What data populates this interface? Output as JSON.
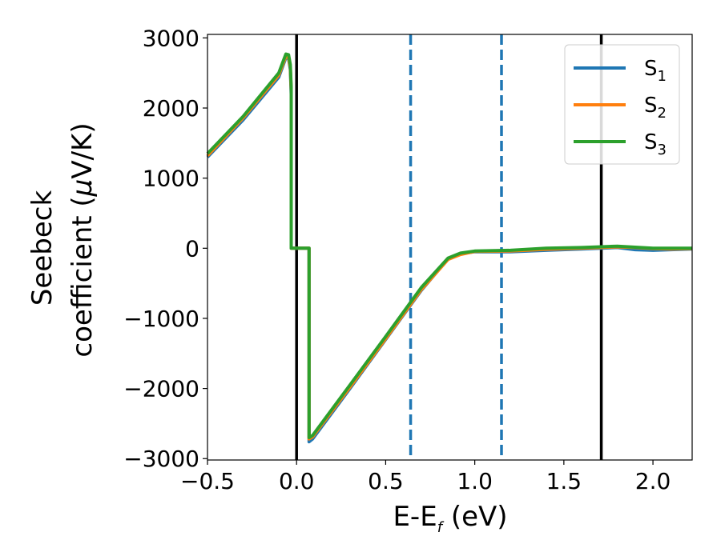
{
  "chart_data": {
    "type": "line",
    "title": "",
    "xlabel": {
      "base": "E-E",
      "sub": "f",
      "rest": " (eV)"
    },
    "ylabel": {
      "line1": "Seebeck",
      "line2_base": "coefficient  (",
      "line2_mu": "μ",
      "line2_rest": "V/K)"
    },
    "xlim": [
      -0.5,
      2.22
    ],
    "ylim": [
      -3020,
      3050
    ],
    "x_ticks": [
      -0.5,
      0.0,
      0.5,
      1.0,
      1.5,
      2.0
    ],
    "x_tick_labels": [
      "−0.5",
      "0.0",
      "0.5",
      "1.0",
      "1.5",
      "2.0"
    ],
    "y_ticks": [
      3000,
      2000,
      1000,
      0,
      -1000,
      -2000,
      -3000
    ],
    "y_tick_labels": [
      "3000",
      "2000",
      "1000",
      "0",
      "−1000",
      "−2000",
      "−3000"
    ],
    "grid": false,
    "legend_position": "top-right",
    "vertical_lines": [
      {
        "x": 0.0,
        "style": "solid",
        "color": "#000000"
      },
      {
        "x": 1.71,
        "style": "solid",
        "color": "#000000"
      },
      {
        "x": 0.64,
        "style": "dashed",
        "color": "#1f77b4"
      },
      {
        "x": 1.15,
        "style": "dashed",
        "color": "#1f77b4"
      }
    ],
    "series": [
      {
        "name": "S1",
        "label_base": "S",
        "label_sub": "1",
        "color": "#1f77b4",
        "x": [
          -0.5,
          -0.3,
          -0.1,
          -0.06,
          -0.045,
          -0.035,
          -0.03,
          -0.03,
          0.07,
          0.07,
          0.09,
          0.3,
          0.5,
          0.7,
          0.85,
          0.92,
          1.0,
          1.2,
          1.4,
          1.6,
          1.8,
          1.9,
          2.0,
          2.1,
          2.22
        ],
        "y": [
          1300,
          1830,
          2440,
          2720,
          2700,
          2550,
          2200,
          0,
          0,
          -2760,
          -2720,
          -2000,
          -1300,
          -600,
          -150,
          -80,
          -50,
          -50,
          -30,
          -10,
          10,
          -20,
          -30,
          -20,
          -10
        ]
      },
      {
        "name": "S2",
        "label_base": "S",
        "label_sub": "2",
        "color": "#ff7f0e",
        "x": [
          -0.5,
          -0.3,
          -0.1,
          -0.06,
          -0.045,
          -0.035,
          -0.03,
          -0.03,
          0.07,
          0.07,
          0.09,
          0.3,
          0.5,
          0.7,
          0.85,
          0.92,
          1.0,
          1.2,
          1.4,
          1.6,
          1.8,
          1.9,
          2.0,
          2.1,
          2.22
        ],
        "y": [
          1320,
          1860,
          2470,
          2740,
          2720,
          2580,
          2250,
          0,
          0,
          -2720,
          -2690,
          -1980,
          -1290,
          -590,
          -160,
          -90,
          -45,
          -40,
          -15,
          0,
          20,
          10,
          -5,
          -10,
          -5
        ]
      },
      {
        "name": "S3",
        "label_base": "S",
        "label_sub": "3",
        "color": "#2ca02c",
        "x": [
          -0.5,
          -0.3,
          -0.1,
          -0.06,
          -0.045,
          -0.035,
          -0.03,
          -0.03,
          0.07,
          0.07,
          0.09,
          0.3,
          0.5,
          0.7,
          0.85,
          0.92,
          1.0,
          1.2,
          1.4,
          1.6,
          1.8,
          1.9,
          2.0,
          2.1,
          2.22
        ],
        "y": [
          1350,
          1880,
          2500,
          2770,
          2760,
          2620,
          2300,
          0,
          0,
          -2700,
          -2670,
          -1950,
          -1260,
          -560,
          -140,
          -70,
          -40,
          -30,
          0,
          10,
          30,
          15,
          0,
          0,
          0
        ]
      }
    ]
  }
}
